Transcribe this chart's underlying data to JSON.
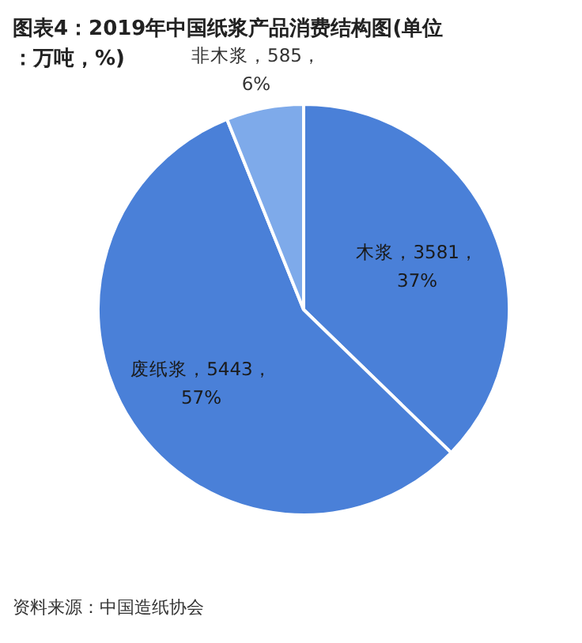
{
  "chart_data": {
    "type": "pie",
    "title": "图表4：2019年中国纸浆产品消费结构图(单位：万吨，%)",
    "categories": [
      "木浆",
      "废纸浆",
      "非木浆"
    ],
    "values": [
      3581,
      5443,
      585
    ],
    "colors": [
      "#4a80d8",
      "#4a80d8",
      "#7eaaea"
    ],
    "value_labels": [
      "3581，37%",
      "5443，57%",
      "585，6%"
    ],
    "annotations": [
      "资料来源：中国造纸协会"
    ]
  }
}
